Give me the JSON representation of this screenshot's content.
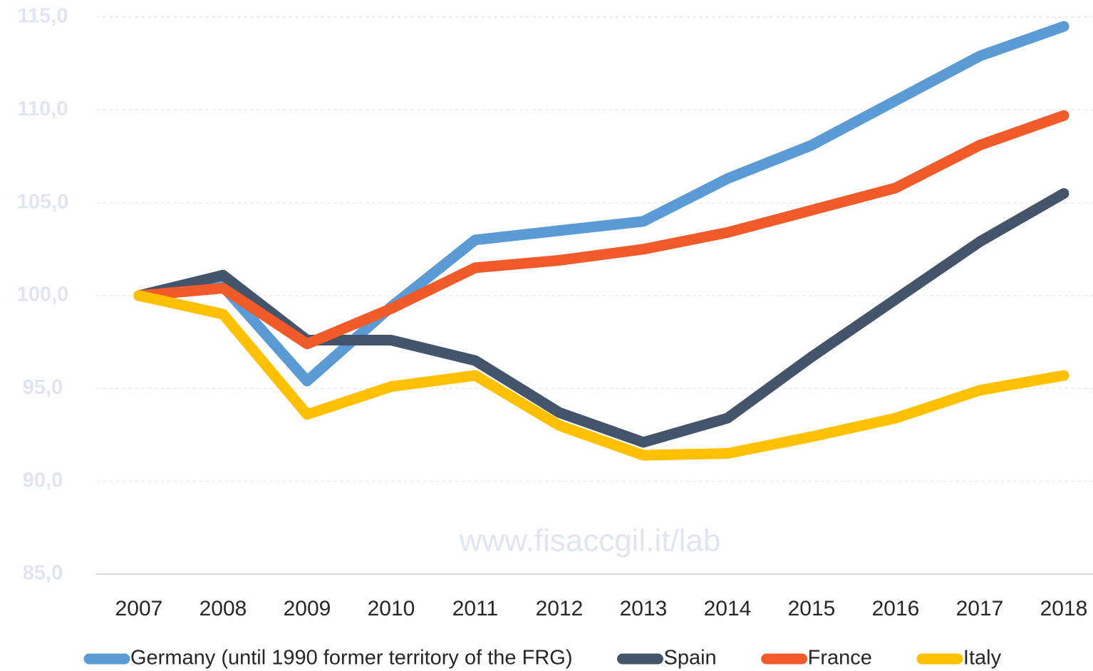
{
  "chart_data": {
    "type": "line",
    "annotation": "www.fisaccgil.it/lab",
    "categories": [
      "2007",
      "2008",
      "2009",
      "2010",
      "2011",
      "2012",
      "2013",
      "2014",
      "2015",
      "2016",
      "2017",
      "2018"
    ],
    "series": [
      {
        "name": "Germany (until 1990 former territory of the FRG)",
        "color": "#5b9bd5",
        "values": [
          100,
          100.5,
          95.4,
          99.4,
          103.0,
          103.5,
          104.0,
          106.3,
          108.1,
          110.5,
          112.9,
          114.5
        ]
      },
      {
        "name": "Spain",
        "color": "#44546a",
        "values": [
          100,
          101.1,
          97.6,
          97.6,
          96.5,
          93.7,
          92.1,
          93.4,
          96.7,
          99.8,
          102.9,
          105.5
        ]
      },
      {
        "name": "France",
        "color": "#f15a29",
        "values": [
          100,
          100.4,
          97.4,
          99.3,
          101.5,
          101.9,
          102.5,
          103.4,
          104.6,
          105.8,
          108.1,
          109.7
        ]
      },
      {
        "name": "Italy",
        "color": "#ffc000",
        "values": [
          100,
          99.0,
          93.6,
          95.1,
          95.7,
          93.0,
          91.4,
          91.5,
          92.4,
          93.4,
          94.9,
          95.7
        ]
      }
    ],
    "ylim": [
      85,
      115
    ],
    "yticks": [
      {
        "value": 85,
        "label": "85,0"
      },
      {
        "value": 90,
        "label": "90,0"
      },
      {
        "value": 95,
        "label": "95,0"
      },
      {
        "value": 100,
        "label": "100,0"
      },
      {
        "value": 105,
        "label": "105,0"
      },
      {
        "value": 110,
        "label": "110,0"
      },
      {
        "value": 115,
        "label": "115,0"
      }
    ],
    "grid": true,
    "legend": "bottom"
  }
}
